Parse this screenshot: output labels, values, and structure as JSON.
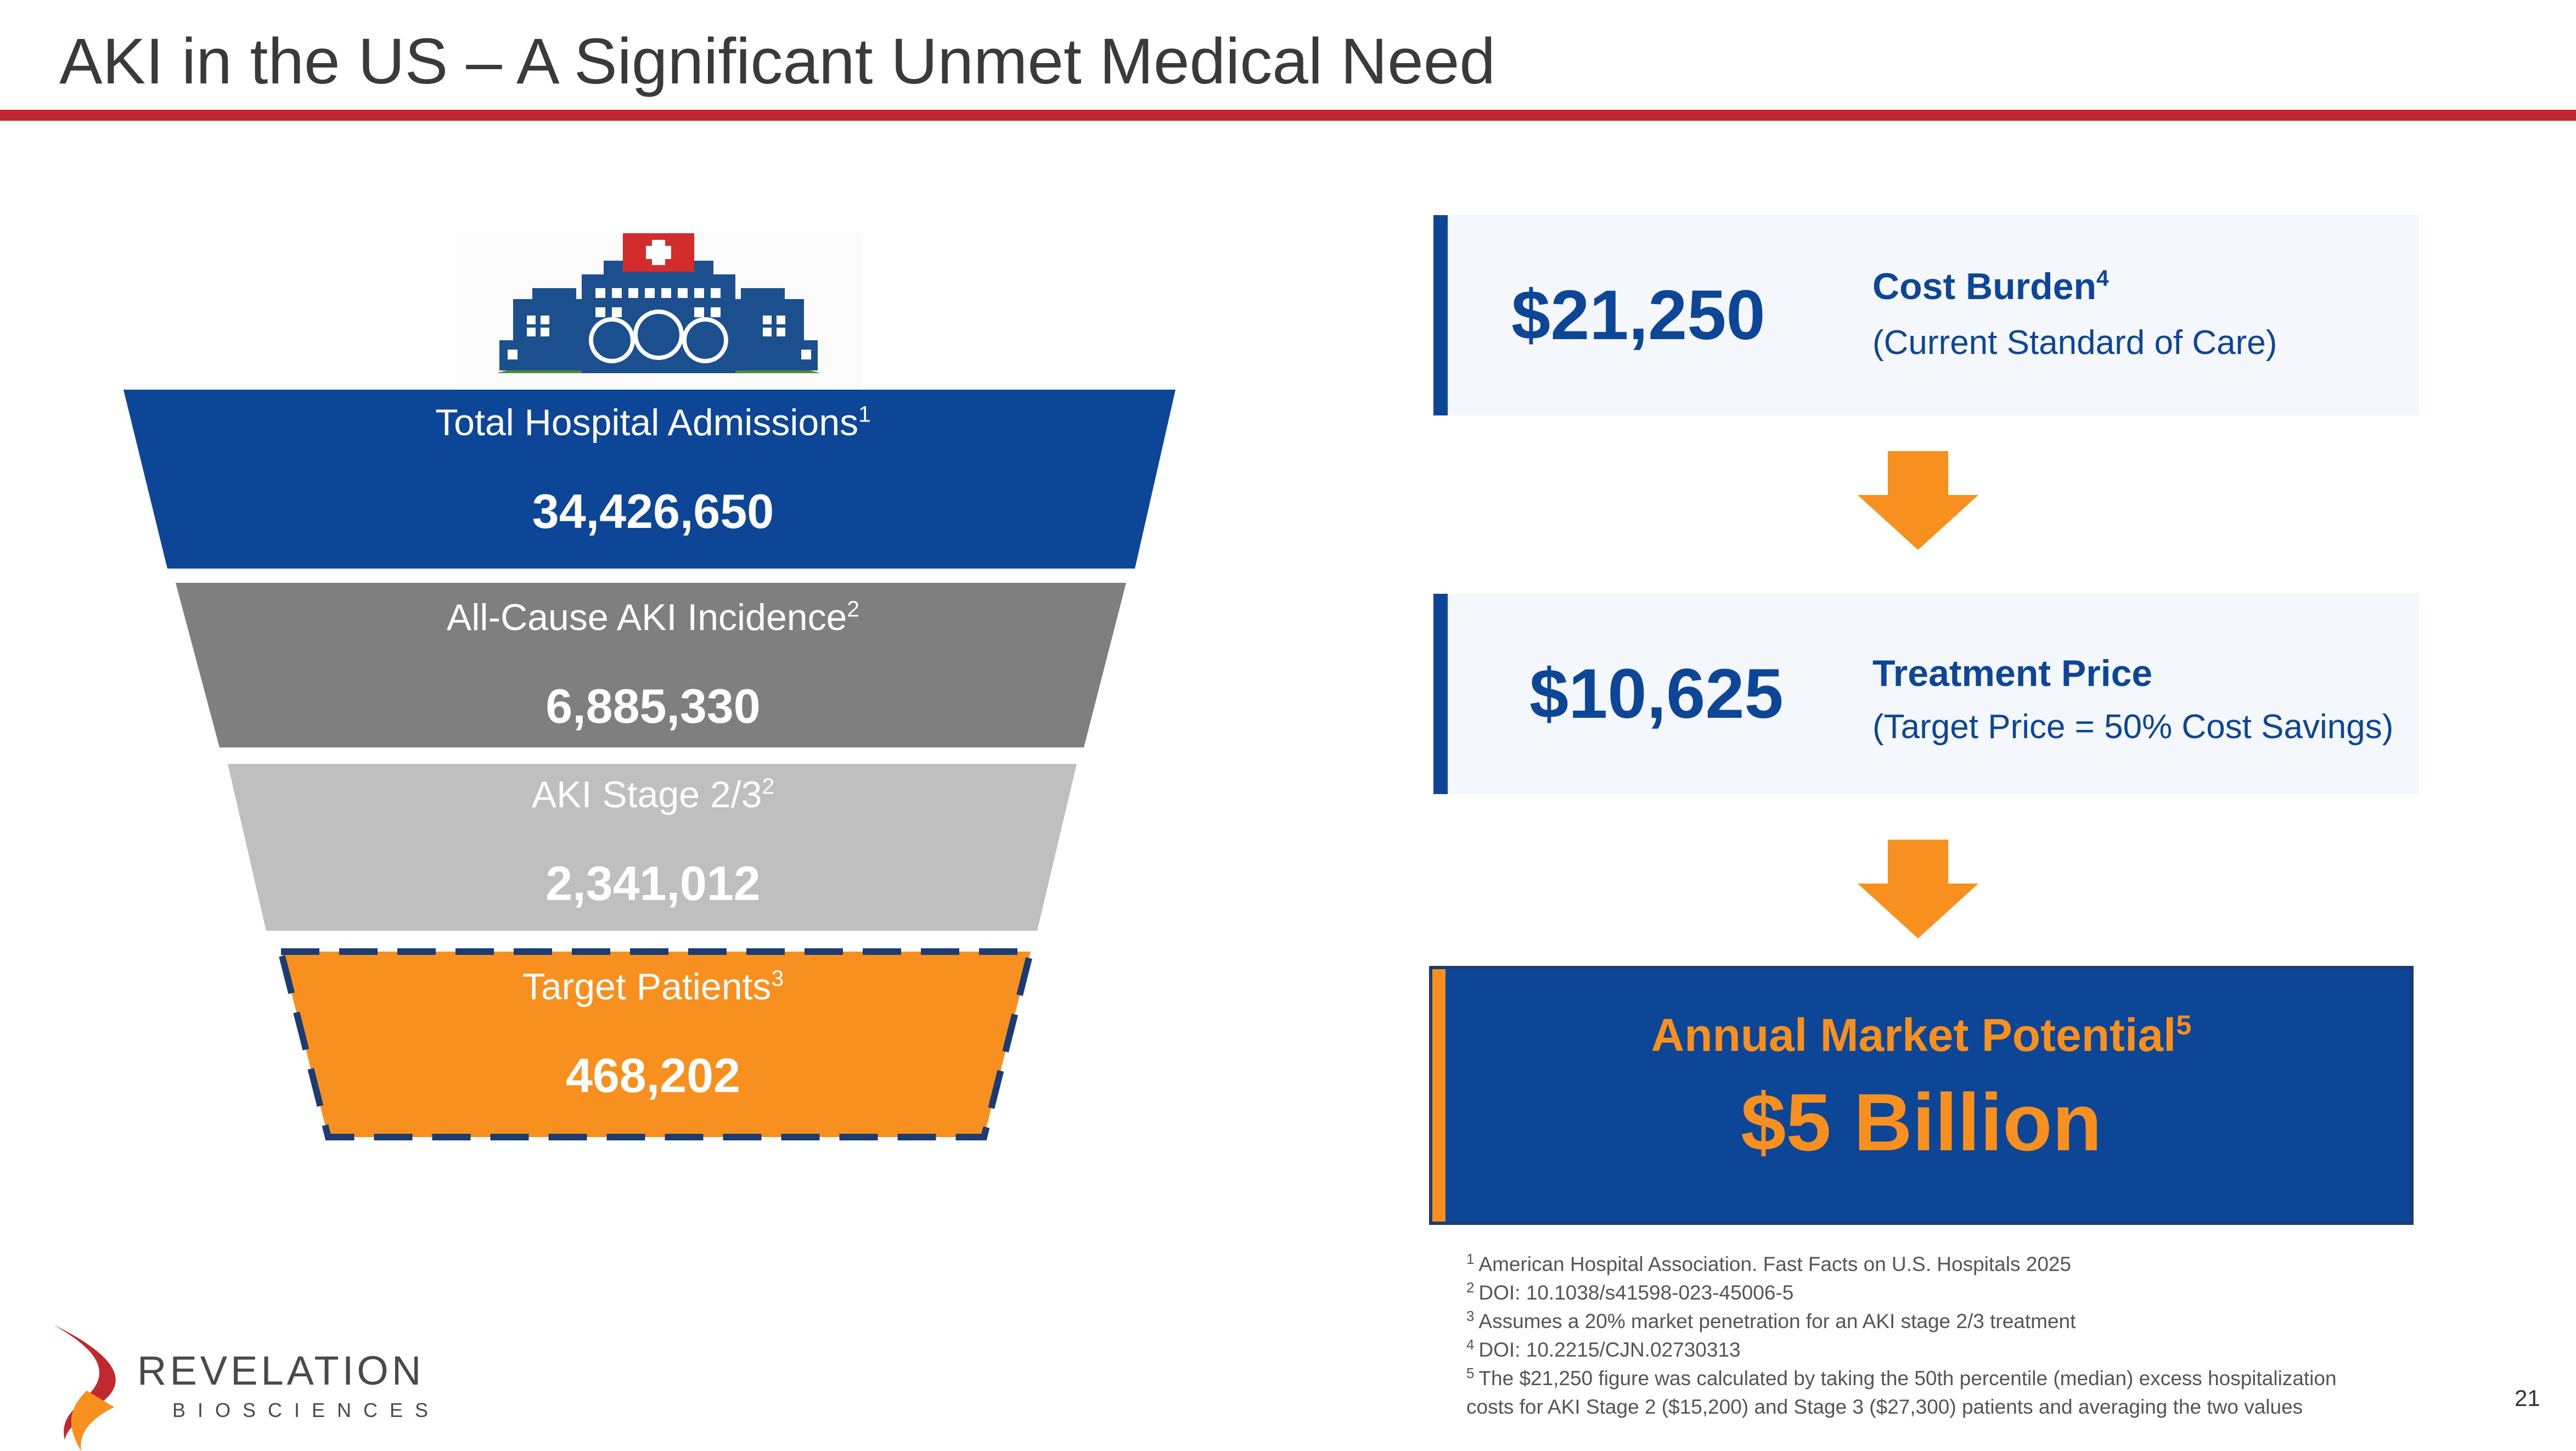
{
  "slide": {
    "title": "AKI in the US – A Significant Unmet Medical Need",
    "page_number": "21"
  },
  "colors": {
    "title_rule": "#c0282d",
    "navy": "#0d4696",
    "orange": "#f7901e",
    "dark_gray": "#7f7f7f",
    "light_gray": "#bfbfbf"
  },
  "funnel": [
    {
      "label": "Total Hospital Admissions",
      "sup": "1",
      "value": "34,426,650"
    },
    {
      "label": "All-Cause AKI Incidence",
      "sup": "2",
      "value": "6,885,330"
    },
    {
      "label": "AKI Stage 2/3",
      "sup": "2",
      "value": "2,341,012"
    },
    {
      "label": "Target Patients",
      "sup": "3",
      "value": "468,202"
    }
  ],
  "cost_burden": {
    "value": "$21,250",
    "title": "Cost Burden",
    "sup": "4",
    "subtitle": "(Current Standard of Care)"
  },
  "treatment_price": {
    "value": "$10,625",
    "title": "Treatment Price",
    "subtitle": "(Target Price = 50% Cost Savings)"
  },
  "market": {
    "title": "Annual Market Potential",
    "sup": "5",
    "value": "$5 Billion"
  },
  "footnotes": [
    {
      "num": "1",
      "text": "American Hospital Association. Fast Facts on U.S. Hospitals 2025"
    },
    {
      "num": "2",
      "text": "DOI: 10.1038/s41598-023-45006-5"
    },
    {
      "num": "3",
      "text": "Assumes a 20% market penetration for an AKI stage 2/3 treatment"
    },
    {
      "num": "4",
      "text": "DOI: 10.2215/CJN.02730313"
    },
    {
      "num": "5",
      "text": "The $21,250 figure was calculated by taking the 50th percentile (median) excess hospitalization"
    },
    {
      "num": "",
      "text": "costs for AKI Stage 2 ($15,200) and Stage 3 ($27,300) patients and averaging  the two values"
    }
  ],
  "logo": {
    "name": "REVELATION",
    "sub": "BIOSCIENCES"
  }
}
